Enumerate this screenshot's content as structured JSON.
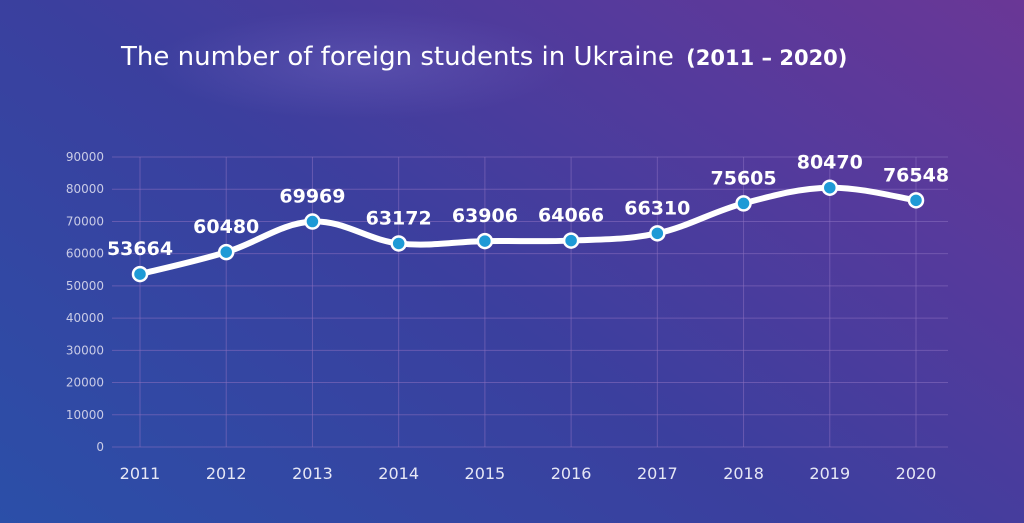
{
  "title": {
    "main": "The number of foreign students in Ukraine",
    "range": "(2011 – 2020)"
  },
  "chart_data": {
    "type": "line",
    "categories": [
      "2011",
      "2012",
      "2013",
      "2014",
      "2015",
      "2016",
      "2017",
      "2018",
      "2019",
      "2020"
    ],
    "values": [
      53664,
      60480,
      69969,
      63172,
      63906,
      64066,
      66310,
      75605,
      80470,
      76548
    ],
    "data_labels": [
      "53664",
      "60480",
      "69969",
      "63172",
      "63906",
      "64066",
      "66310",
      "75605",
      "80470",
      "76548"
    ],
    "y_ticks": [
      "0",
      "10000",
      "20000",
      "30000",
      "40000",
      "50000",
      "60000",
      "70000",
      "80000",
      "90000"
    ],
    "ylim": [
      0,
      90000
    ],
    "grid": true,
    "smooth": true,
    "colors": {
      "line": "#ffffff",
      "marker_fill": "#1e9ad6",
      "marker_stroke": "#ffffff",
      "grid": "#8a6fc0"
    }
  }
}
